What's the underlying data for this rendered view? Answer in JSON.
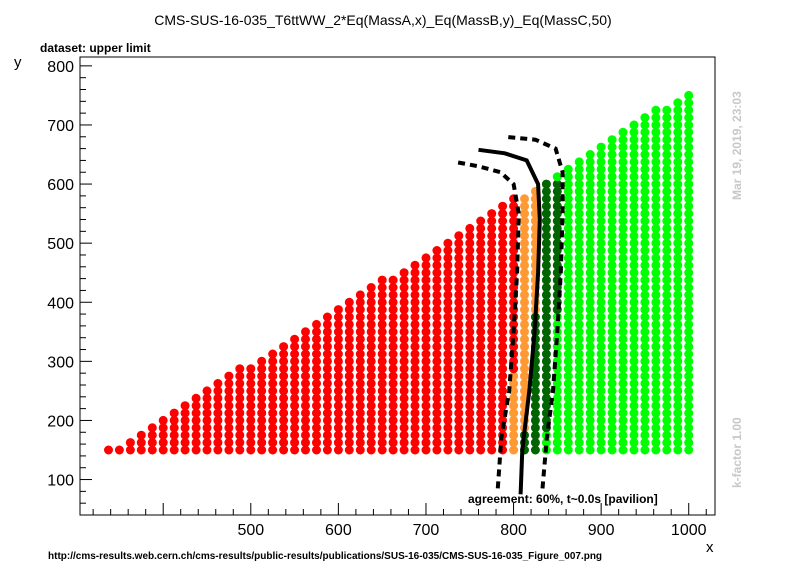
{
  "chart_data": {
    "type": "scatter",
    "title": "CMS-SUS-16-035_T6ttWW_2*Eq(MassA,x)_Eq(MassB,y)_Eq(MassC,50)",
    "subtitle": "dataset: upper limit",
    "xlabel": "x",
    "ylabel": "y",
    "xlim": [
      305,
      1030
    ],
    "ylim": [
      40,
      815
    ],
    "x_ticks": [
      500,
      600,
      700,
      800,
      900,
      1000
    ],
    "y_ticks": [
      100,
      200,
      300,
      400,
      500,
      600,
      700,
      800
    ],
    "grid": false,
    "annotation": "agreement: 60%, t~0.0s [pavilion]",
    "side_label_top": "Mar 19, 2019, 23:03",
    "side_label_bottom": "k-factor 1.00",
    "footer_url": "http://cms-results.web.cern.ch/cms-results/public-results/publications/SUS-16-035/CMS-SUS-16-035_Figure_007.png",
    "colors": {
      "excluded": "#ff0000",
      "excluded_border": "#ff9933",
      "allowed_border": "#006400",
      "allowed": "#00ff00",
      "curve": "#000000"
    },
    "point_groups_description": {
      "excluded": "excluded",
      "excluded_border": "excluded_border",
      "allowed_border": "allowed_border",
      "allowed": "allowed"
    },
    "grid_rule": {
      "x_step": 12.5,
      "y_step": 12.5,
      "x_min": 337.5,
      "x_max": 1000,
      "y_min": 150,
      "y_offset": 187.5,
      "y_slope_upper": 0.92,
      "border_a_offset": 20,
      "border_b_offset": 45,
      "point_radius": 4.5
    },
    "contours": [
      {
        "style": "solid",
        "points": [
          [
            808,
            75
          ],
          [
            810,
            150
          ],
          [
            818,
            250
          ],
          [
            824,
            350
          ],
          [
            828,
            450
          ],
          [
            830,
            540
          ],
          [
            828,
            600
          ],
          [
            815,
            640
          ],
          [
            790,
            652
          ],
          [
            760,
            658
          ]
        ]
      },
      {
        "style": "dashed",
        "points": [
          [
            782,
            85
          ],
          [
            786,
            170
          ],
          [
            795,
            250
          ],
          [
            800,
            350
          ],
          [
            804,
            450
          ],
          [
            806,
            550
          ],
          [
            800,
            600
          ],
          [
            785,
            620
          ],
          [
            760,
            630
          ],
          [
            735,
            637
          ]
        ]
      },
      {
        "style": "dashed",
        "points": [
          [
            833,
            85
          ],
          [
            838,
            170
          ],
          [
            845,
            250
          ],
          [
            850,
            350
          ],
          [
            854,
            450
          ],
          [
            856,
            550
          ],
          [
            856,
            620
          ],
          [
            848,
            660
          ],
          [
            825,
            675
          ],
          [
            790,
            680
          ]
        ]
      }
    ]
  }
}
